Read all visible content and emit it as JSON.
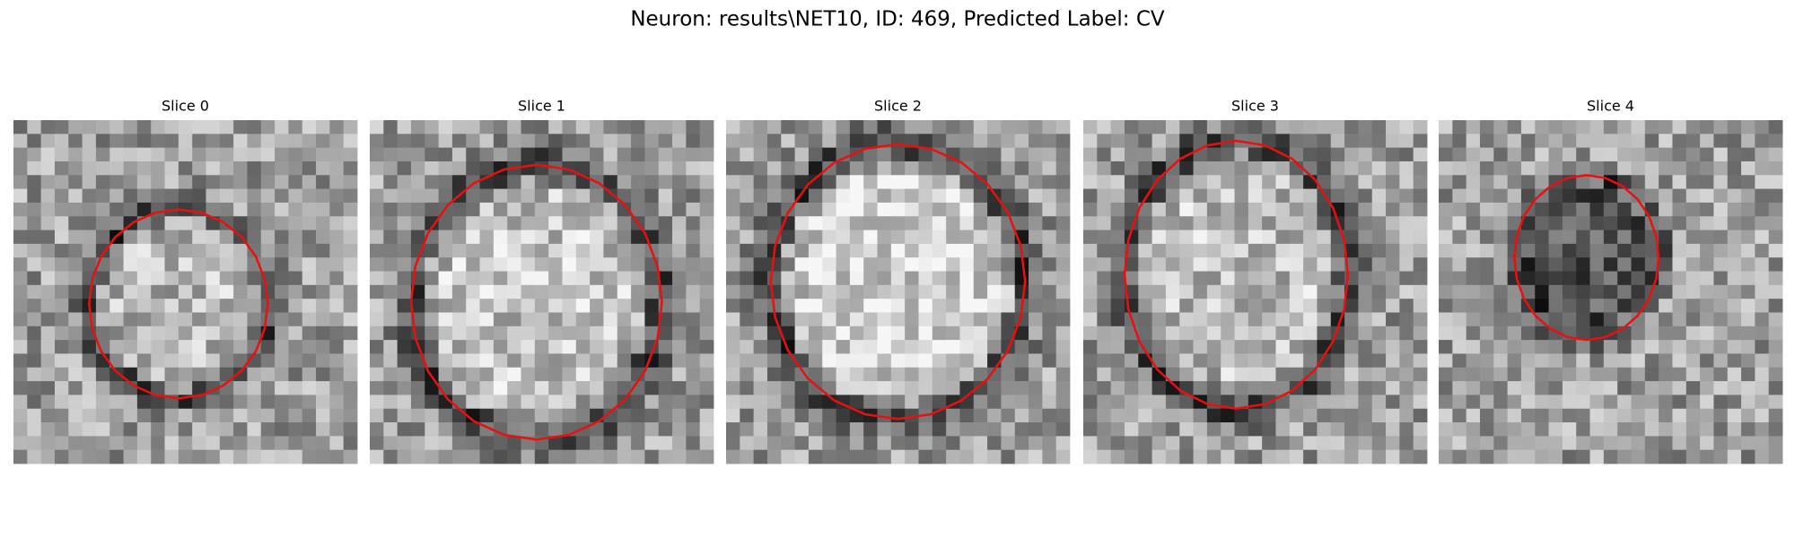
{
  "header": {
    "title": "Neuron: results\\NET10, ID: 469, Predicted Label: CV"
  },
  "panels": [
    {
      "title": "Slice 0"
    },
    {
      "title": "Slice 1"
    },
    {
      "title": "Slice 2"
    },
    {
      "title": "Slice 3"
    },
    {
      "title": "Slice 4"
    }
  ]
}
